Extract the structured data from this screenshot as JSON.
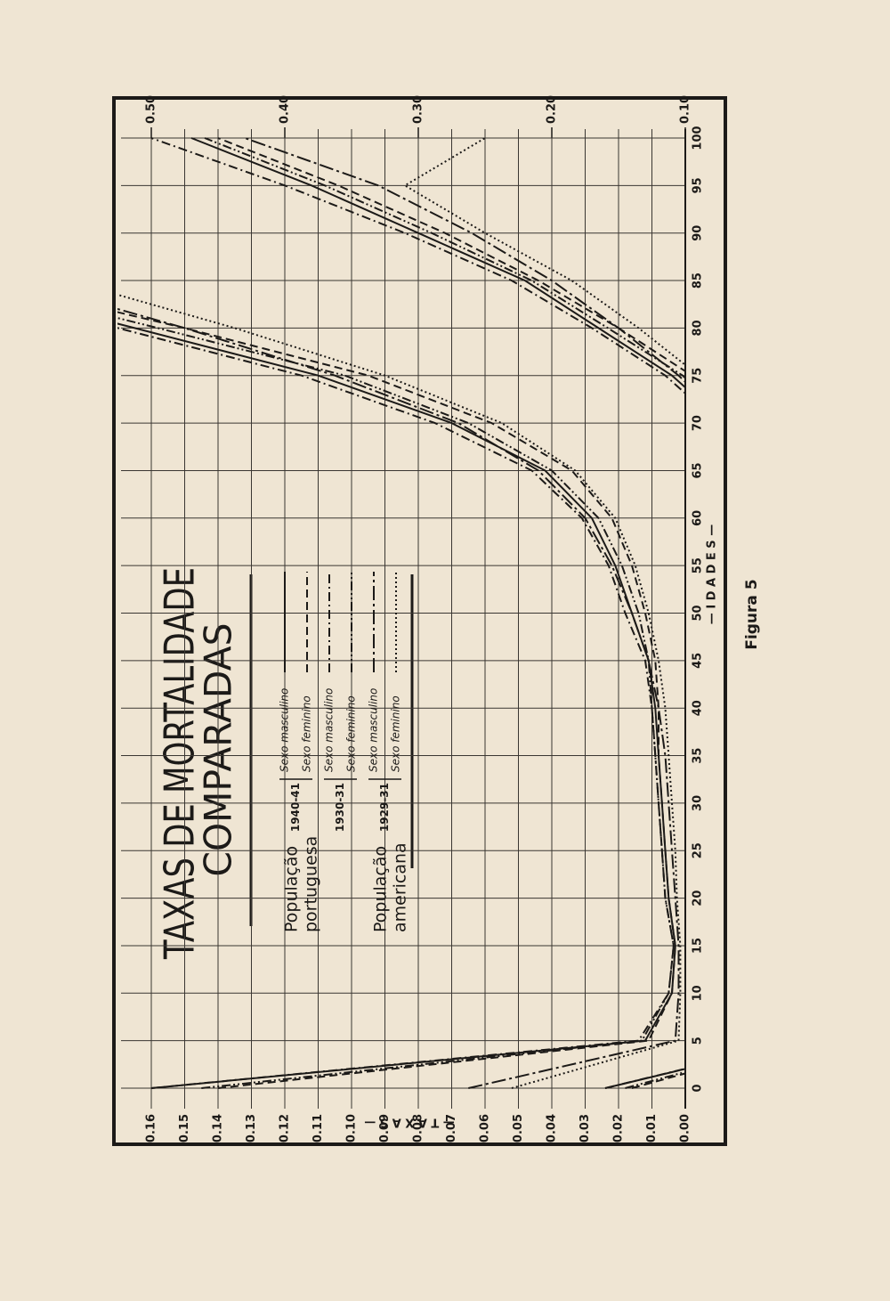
{
  "chart_data": {
    "type": "line",
    "title": [
      "TAXAS DE MORTALIDADE",
      "COMPARADAS"
    ],
    "caption": "Figura 5",
    "x_label": "— I D A D E S —",
    "y_label": "— T A X A S —",
    "x": [
      0,
      5,
      10,
      15,
      20,
      25,
      30,
      35,
      40,
      45,
      50,
      55,
      60,
      65,
      70,
      75,
      80,
      85,
      90,
      95,
      100
    ],
    "xlim": [
      0,
      100
    ],
    "xticks": [
      0,
      5,
      10,
      15,
      20,
      25,
      30,
      35,
      40,
      45,
      50,
      55,
      60,
      65,
      70,
      75,
      80,
      85,
      90,
      95,
      100
    ],
    "ylim": [
      0,
      0.16
    ],
    "yticks": [
      {
        "value": 0,
        "label": "0.00"
      },
      0.01,
      0.02,
      0.03,
      0.04,
      0.05,
      0.06,
      0.07,
      0.08,
      0.09,
      {
        "value": 0.1,
        "label": "0.10"
      },
      0.11,
      0.12,
      0.13,
      0.14,
      0.15,
      0.16
    ],
    "y2lim": [
      0.1,
      0.5
    ],
    "y2ticks": [
      {
        "value": 0.1,
        "label": "0.10"
      },
      {
        "value": 0.2,
        "label": "0.20"
      },
      {
        "value": 0.3,
        "label": "0.30"
      },
      {
        "value": 0.4,
        "label": "0.40"
      },
      {
        "value": 0.5,
        "label": "0.50"
      }
    ],
    "grid": true,
    "color": "#1c1a18",
    "groups": [
      {
        "label": [
          "População",
          "portuguesa"
        ],
        "periods": [
          {
            "label": "1940-41",
            "series": [
              {
                "name": "Sexo masculino",
                "style": "solid",
                "axes": [
                  "y",
                  "y2"
                ],
                "values": [
                  0.16,
                  0.012,
                  0.004,
                  0.003,
                  0.005,
                  0.006,
                  0.007,
                  0.008,
                  0.009,
                  0.011,
                  0.016,
                  0.021,
                  0.028,
                  0.042,
                  0.07,
                  0.11,
                  0.165,
                  0.22,
                  0.3,
                  0.38,
                  0.47
                ]
              },
              {
                "name": "Sexo feminino",
                "style": "dashed",
                "axes": [
                  "y",
                  "y2"
                ],
                "values": [
                  0.14,
                  0.011,
                  0.004,
                  0.003,
                  0.005,
                  0.006,
                  0.007,
                  0.008,
                  0.008,
                  0.009,
                  0.012,
                  0.016,
                  0.022,
                  0.034,
                  0.058,
                  0.095,
                  0.15,
                  0.21,
                  0.28,
                  0.36,
                  0.45
                ]
              }
            ]
          },
          {
            "label": "1930-31",
            "series": [
              {
                "name": "Sexo masculino",
                "style": "dashdot",
                "axes": [
                  "y",
                  "y2"
                ],
                "values": [
                  0.16,
                  0.014,
                  0.005,
                  0.0035,
                  0.006,
                  0.007,
                  0.008,
                  0.009,
                  0.01,
                  0.012,
                  0.018,
                  0.023,
                  0.031,
                  0.046,
                  0.075,
                  0.115,
                  0.17,
                  0.23,
                  0.31,
                  0.4,
                  0.5
                ]
              },
              {
                "name": "Sexo feminino",
                "style": "dashdotdot",
                "axes": [
                  "y",
                  "y2"
                ],
                "values": [
                  0.145,
                  0.013,
                  0.005,
                  0.0035,
                  0.006,
                  0.007,
                  0.008,
                  0.009,
                  0.01,
                  0.011,
                  0.014,
                  0.019,
                  0.026,
                  0.04,
                  0.065,
                  0.102,
                  0.158,
                  0.215,
                  0.29,
                  0.37,
                  0.46
                ]
              }
            ]
          }
        ]
      },
      {
        "label": [
          "População",
          "americana"
        ],
        "periods": [
          {
            "label": "1929-31",
            "series": [
              {
                "name": "Sexo masculino",
                "style": "longdashdot",
                "axes": [
                  "y",
                  "y2"
                ],
                "values": [
                  0.065,
                  0.003,
                  0.002,
                  0.002,
                  0.003,
                  0.004,
                  0.005,
                  0.006,
                  0.008,
                  0.011,
                  0.016,
                  0.022,
                  0.03,
                  0.044,
                  0.068,
                  0.105,
                  0.15,
                  0.2,
                  0.26,
                  0.33,
                  0.43
                ]
              },
              {
                "name": "Sexo feminino",
                "style": "dotted",
                "axes": [
                  "y",
                  "y2"
                ],
                "values": [
                  0.052,
                  0.002,
                  0.0015,
                  0.0015,
                  0.0025,
                  0.003,
                  0.004,
                  0.005,
                  0.006,
                  0.008,
                  0.011,
                  0.015,
                  0.021,
                  0.033,
                  0.055,
                  0.09,
                  0.135,
                  0.185,
                  0.25,
                  0.31,
                  0.25
                ]
              }
            ]
          }
        ]
      }
    ]
  }
}
